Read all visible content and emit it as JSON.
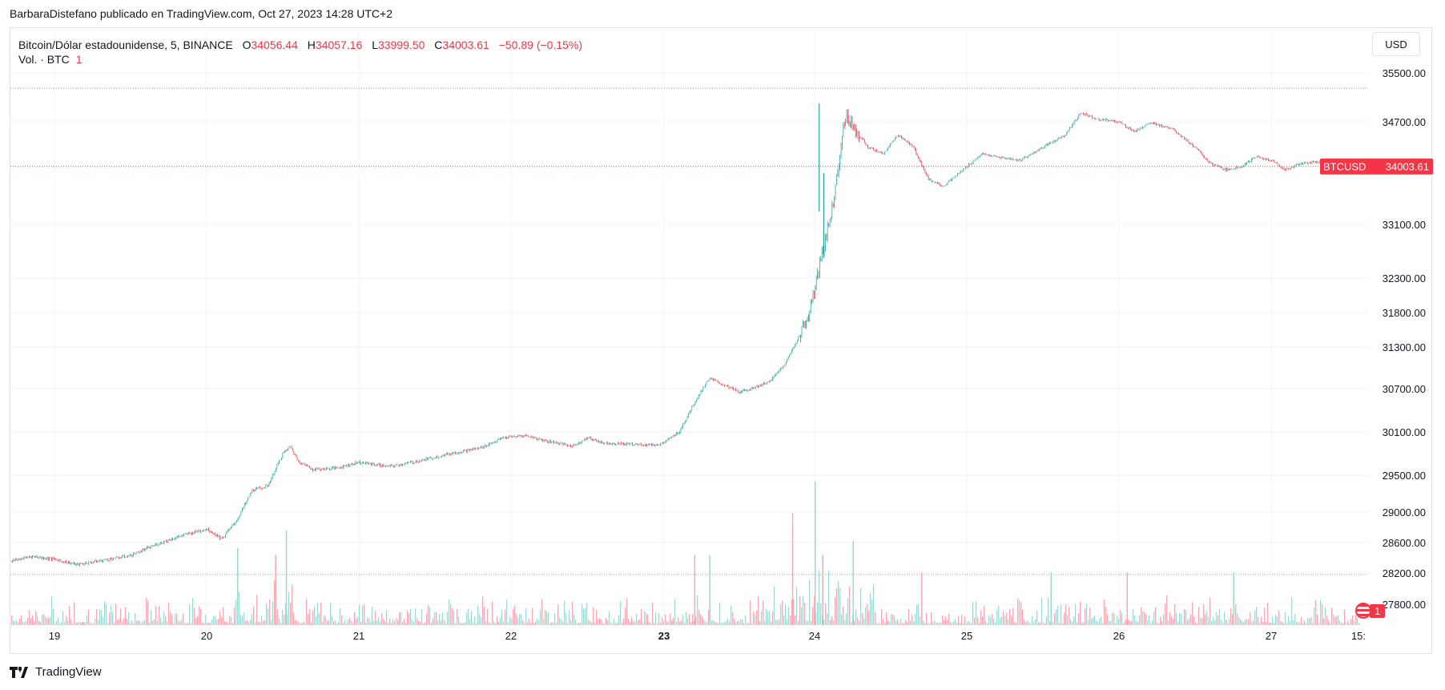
{
  "publisher_line": "BarbaraDistefano publicado en TradingView.com, Oct 27, 2023 14:28 UTC+2",
  "legend": {
    "symbol": "Bitcoin/Dólar estadounidense, 5, BINANCE",
    "o_label": "O",
    "o_value": "34056.44",
    "h_label": "H",
    "h_value": "34057.16",
    "l_label": "L",
    "l_value": "33999.50",
    "c_label": "C",
    "c_value": "34003.61",
    "change": "−50.89 (−0.15%)",
    "volume_label": "Vol. · BTC",
    "volume_count": "1"
  },
  "currency_button": "USD",
  "price_label": {
    "ticker": "BTCUSD",
    "value": "34003.61"
  },
  "footer_brand": "TradingView",
  "alerts_count": "1",
  "colors": {
    "up": "#26a69a",
    "down": "#f23645",
    "grid": "#f0f3fa",
    "text": "#131722"
  },
  "chart_data": {
    "type": "candlestick",
    "interval": "5",
    "exchange": "BINANCE",
    "y_ticks": [
      35500,
      34700,
      33100,
      32300,
      31800,
      31300,
      30700,
      30100,
      29500,
      29000,
      28600,
      28200,
      27800
    ],
    "y_tick_labels": [
      "35500.00",
      "34700.00",
      "33100.00",
      "32300.00",
      "31800.00",
      "31300.00",
      "30700.00",
      "30100.00",
      "29500.00",
      "29000.00",
      "28600.00",
      "28200.00",
      "27800.00"
    ],
    "x_tick_labels": [
      "19",
      "20",
      "21",
      "22",
      "23",
      "24",
      "25",
      "26",
      "27",
      "15:"
    ],
    "x_tick_days": [
      19,
      20,
      21,
      22,
      23,
      24,
      25,
      26,
      27,
      27.6
    ],
    "bold_x_tick": "23",
    "last_price": 34003.61,
    "high_line": 35250,
    "low_line": 28180,
    "price_path": [
      [
        18.7,
        28350
      ],
      [
        18.85,
        28420
      ],
      [
        19.0,
        28380
      ],
      [
        19.15,
        28310
      ],
      [
        19.3,
        28360
      ],
      [
        19.5,
        28430
      ],
      [
        19.7,
        28600
      ],
      [
        19.85,
        28700
      ],
      [
        20.0,
        28780
      ],
      [
        20.1,
        28650
      ],
      [
        20.2,
        28900
      ],
      [
        20.3,
        29300
      ],
      [
        20.4,
        29350
      ],
      [
        20.5,
        29800
      ],
      [
        20.55,
        29900
      ],
      [
        20.6,
        29700
      ],
      [
        20.7,
        29580
      ],
      [
        20.85,
        29600
      ],
      [
        21.0,
        29680
      ],
      [
        21.2,
        29620
      ],
      [
        21.4,
        29700
      ],
      [
        21.6,
        29800
      ],
      [
        21.8,
        29880
      ],
      [
        21.95,
        30020
      ],
      [
        22.1,
        30050
      ],
      [
        22.2,
        29990
      ],
      [
        22.3,
        29950
      ],
      [
        22.4,
        29900
      ],
      [
        22.5,
        30020
      ],
      [
        22.6,
        29950
      ],
      [
        22.8,
        29930
      ],
      [
        22.95,
        29920
      ],
      [
        23.0,
        29950
      ],
      [
        23.1,
        30100
      ],
      [
        23.2,
        30500
      ],
      [
        23.3,
        30850
      ],
      [
        23.4,
        30750
      ],
      [
        23.5,
        30650
      ],
      [
        23.6,
        30720
      ],
      [
        23.7,
        30800
      ],
      [
        23.8,
        31050
      ],
      [
        23.85,
        31250
      ],
      [
        23.95,
        31700
      ],
      [
        24.0,
        32100
      ],
      [
        24.05,
        32700
      ],
      [
        24.08,
        32950
      ],
      [
        24.12,
        33400
      ],
      [
        24.2,
        34800
      ],
      [
        24.25,
        34650
      ],
      [
        24.35,
        34300
      ],
      [
        24.45,
        34200
      ],
      [
        24.55,
        34500
      ],
      [
        24.65,
        34300
      ],
      [
        24.75,
        33800
      ],
      [
        24.85,
        33700
      ],
      [
        25.0,
        34000
      ],
      [
        25.1,
        34200
      ],
      [
        25.2,
        34150
      ],
      [
        25.35,
        34100
      ],
      [
        25.5,
        34300
      ],
      [
        25.65,
        34500
      ],
      [
        25.75,
        34850
      ],
      [
        25.85,
        34750
      ],
      [
        26.0,
        34700
      ],
      [
        26.1,
        34550
      ],
      [
        26.2,
        34680
      ],
      [
        26.35,
        34600
      ],
      [
        26.5,
        34300
      ],
      [
        26.6,
        34050
      ],
      [
        26.7,
        33950
      ],
      [
        26.8,
        34000
      ],
      [
        26.9,
        34150
      ],
      [
        27.0,
        34100
      ],
      [
        27.1,
        33950
      ],
      [
        27.2,
        34050
      ],
      [
        27.35,
        34080
      ],
      [
        27.45,
        34020
      ],
      [
        27.5,
        34004
      ]
    ],
    "volume_spikes": [
      [
        20.2,
        0.22
      ],
      [
        20.45,
        0.2
      ],
      [
        20.52,
        0.27
      ],
      [
        23.2,
        0.2
      ],
      [
        23.3,
        0.2
      ],
      [
        23.85,
        0.32
      ],
      [
        24.0,
        0.41
      ],
      [
        24.05,
        0.2
      ],
      [
        24.25,
        0.24
      ],
      [
        24.7,
        0.15
      ],
      [
        25.55,
        0.15
      ],
      [
        26.05,
        0.15
      ],
      [
        26.75,
        0.15
      ]
    ]
  }
}
